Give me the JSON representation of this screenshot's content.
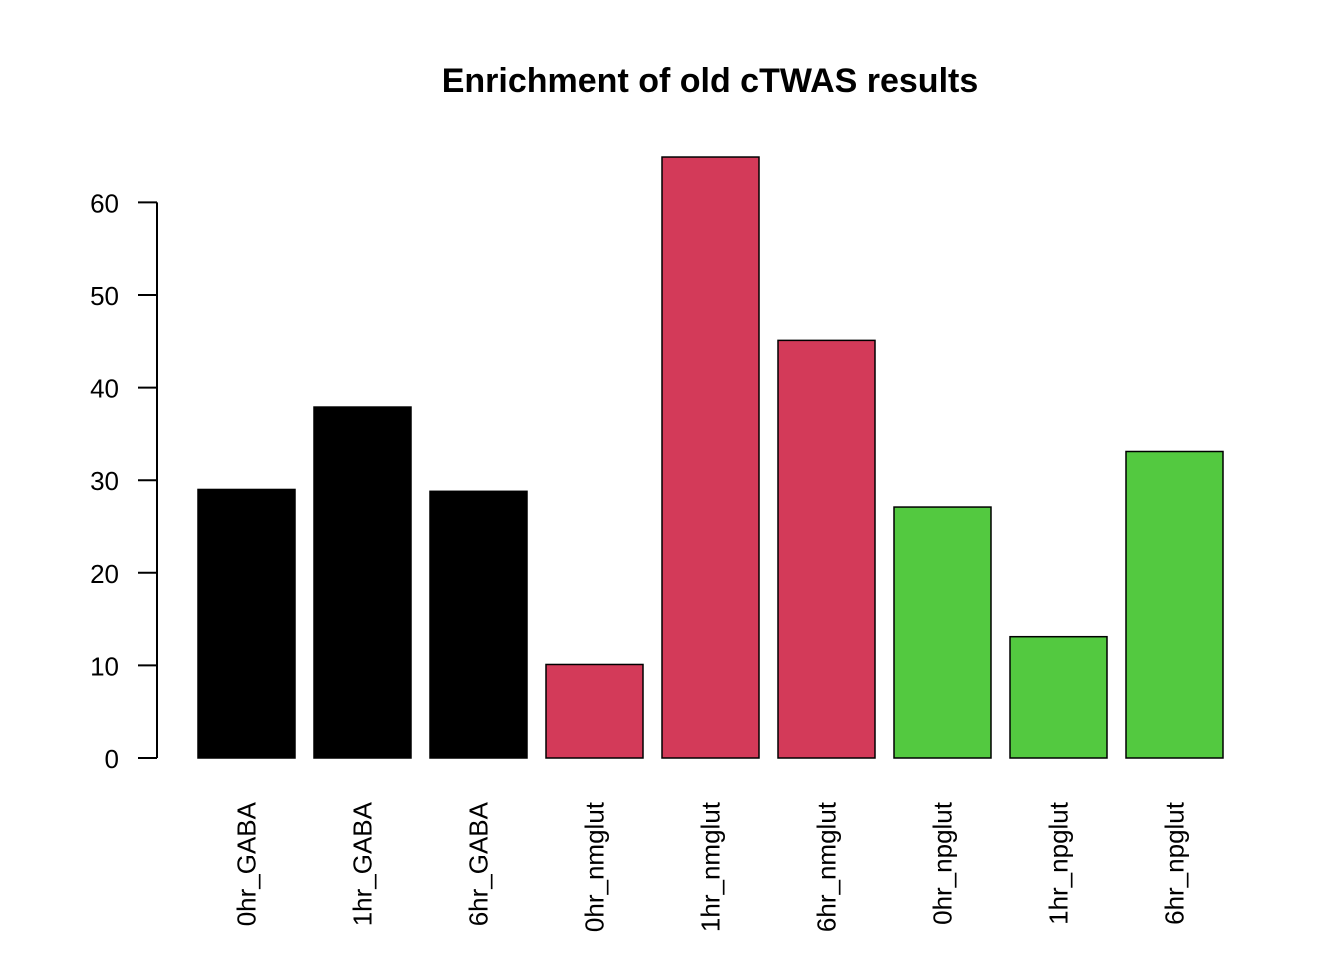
{
  "chart_data": {
    "type": "bar",
    "title": "Enrichment of old cTWAS results",
    "xlabel": "",
    "ylabel": "",
    "ylim": [
      0,
      65
    ],
    "yticks": [
      0,
      10,
      20,
      30,
      40,
      50,
      60
    ],
    "grid": false,
    "legend": "none",
    "categories": [
      "0hr_GABA",
      "1hr_GABA",
      "6hr_GABA",
      "0hr_nmglut",
      "1hr_nmglut",
      "6hr_nmglut",
      "0hr_npglut",
      "1hr_npglut",
      "6hr_npglut"
    ],
    "values": [
      29.0,
      37.9,
      28.8,
      10.1,
      64.9,
      45.1,
      27.1,
      13.1,
      33.1
    ],
    "colors": [
      "#000000",
      "#000000",
      "#000000",
      "#D33A59",
      "#D33A59",
      "#D33A59",
      "#53C940",
      "#53C940",
      "#53C940"
    ]
  }
}
